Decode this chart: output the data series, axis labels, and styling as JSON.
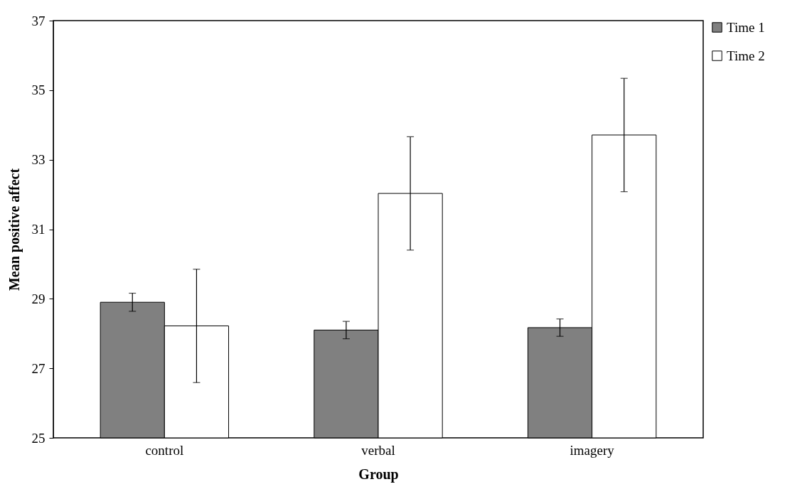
{
  "chart_data": {
    "type": "bar",
    "xlabel": "Group",
    "ylabel": "Mean positive affect",
    "categories": [
      "control",
      "verbal",
      "imagery"
    ],
    "series": [
      {
        "name": "Time 1",
        "color": "#808080",
        "values": [
          28.9,
          28.1,
          28.17
        ],
        "errors": [
          0.26,
          0.25,
          0.25
        ]
      },
      {
        "name": "Time 2",
        "color": "#ffffff",
        "values": [
          28.22,
          32.03,
          33.71
        ],
        "errors": [
          1.63,
          1.63,
          1.63
        ]
      }
    ],
    "ylim": [
      25,
      37
    ],
    "yticks": [
      25,
      27,
      29,
      31,
      33,
      35,
      37
    ],
    "grid": false,
    "legend": "right"
  }
}
